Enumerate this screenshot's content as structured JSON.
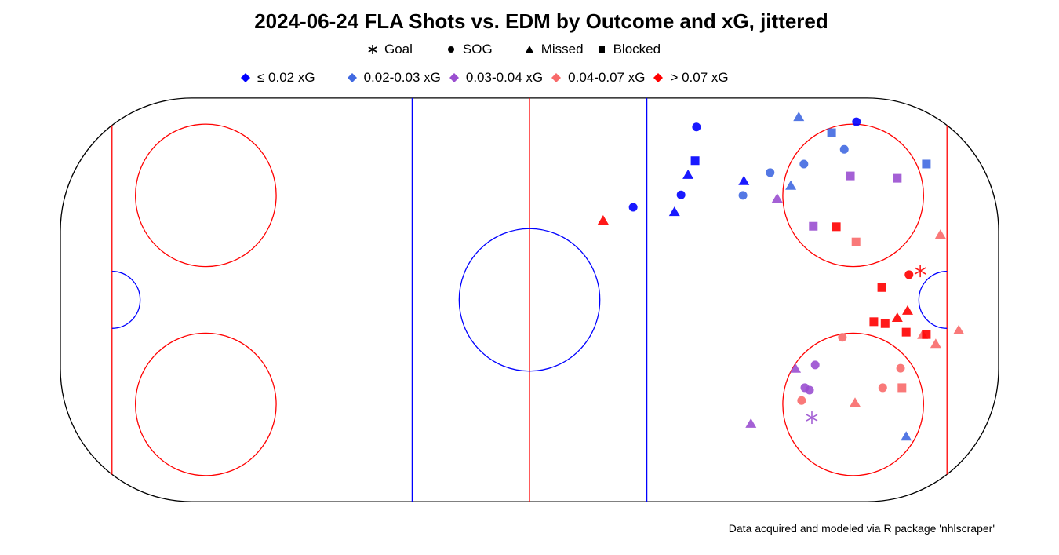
{
  "chart_data": {
    "type": "scatter",
    "title": "2024-06-24 FLA Shots vs. EDM by Outcome and xG, jittered",
    "caption": "Data acquired and modeled via R package 'nhlscraper'",
    "xlim": [
      -100,
      100
    ],
    "ylim": [
      -42.5,
      42.5
    ],
    "grid": false,
    "background": "hockey rink",
    "shape_legend": [
      {
        "label": "Goal",
        "shape": "asterisk"
      },
      {
        "label": "SOG",
        "shape": "circle"
      },
      {
        "label": "Missed",
        "shape": "triangle"
      },
      {
        "label": "Blocked",
        "shape": "square"
      }
    ],
    "color_legend": [
      {
        "label": "≤ 0.02 xG",
        "color": "#0000FF"
      },
      {
        "label": "0.02-0.03 xG",
        "color": "#4169E1"
      },
      {
        "label": "0.03-0.04 xG",
        "color": "#9A4FD0"
      },
      {
        "label": "0.04-0.07 xG",
        "color": "#F86A6A"
      },
      {
        "label": "> 0.07 xG",
        "color": "#FF0000"
      }
    ],
    "points": [
      {
        "x": 35.6,
        "y": 36.4,
        "outcome": "SOG",
        "xg_bin": 0
      },
      {
        "x": 35.3,
        "y": 29.3,
        "outcome": "Blocked",
        "xg_bin": 0
      },
      {
        "x": 33.8,
        "y": 26.3,
        "outcome": "Missed",
        "xg_bin": 0
      },
      {
        "x": 32.3,
        "y": 22.1,
        "outcome": "SOG",
        "xg_bin": 0
      },
      {
        "x": 30.9,
        "y": 18.5,
        "outcome": "Missed",
        "xg_bin": 0
      },
      {
        "x": 22.1,
        "y": 19.5,
        "outcome": "SOG",
        "xg_bin": 0
      },
      {
        "x": 45.7,
        "y": 25.0,
        "outcome": "Missed",
        "xg_bin": 0
      },
      {
        "x": 69.7,
        "y": 37.5,
        "outcome": "SOG",
        "xg_bin": 0
      },
      {
        "x": 57.4,
        "y": 38.5,
        "outcome": "Missed",
        "xg_bin": 1
      },
      {
        "x": 64.4,
        "y": 35.2,
        "outcome": "Blocked",
        "xg_bin": 1
      },
      {
        "x": 67.1,
        "y": 31.7,
        "outcome": "SOG",
        "xg_bin": 1
      },
      {
        "x": 58.5,
        "y": 28.6,
        "outcome": "SOG",
        "xg_bin": 1
      },
      {
        "x": 51.3,
        "y": 26.8,
        "outcome": "SOG",
        "xg_bin": 1
      },
      {
        "x": 45.5,
        "y": 22.0,
        "outcome": "SOG",
        "xg_bin": 1
      },
      {
        "x": 55.7,
        "y": 24.0,
        "outcome": "Missed",
        "xg_bin": 1
      },
      {
        "x": 84.6,
        "y": 28.6,
        "outcome": "Blocked",
        "xg_bin": 1
      },
      {
        "x": 80.3,
        "y": -28.8,
        "outcome": "Missed",
        "xg_bin": 1
      },
      {
        "x": 52.8,
        "y": 21.3,
        "outcome": "Missed",
        "xg_bin": 2
      },
      {
        "x": 68.4,
        "y": 26.1,
        "outcome": "Blocked",
        "xg_bin": 2
      },
      {
        "x": 78.4,
        "y": 25.6,
        "outcome": "Blocked",
        "xg_bin": 2
      },
      {
        "x": 60.5,
        "y": 15.5,
        "outcome": "Blocked",
        "xg_bin": 2
      },
      {
        "x": 56.7,
        "y": -14.5,
        "outcome": "Missed",
        "xg_bin": 2
      },
      {
        "x": 60.9,
        "y": -13.7,
        "outcome": "SOG",
        "xg_bin": 2
      },
      {
        "x": 58.7,
        "y": -18.5,
        "outcome": "SOG",
        "xg_bin": 2
      },
      {
        "x": 59.7,
        "y": -19.0,
        "outcome": "SOG",
        "xg_bin": 2
      },
      {
        "x": 60.2,
        "y": -24.8,
        "outcome": "Goal",
        "xg_bin": 2
      },
      {
        "x": 47.2,
        "y": -26.1,
        "outcome": "Missed",
        "xg_bin": 2
      },
      {
        "x": 69.6,
        "y": 12.2,
        "outcome": "Blocked",
        "xg_bin": 3
      },
      {
        "x": 87.6,
        "y": 13.7,
        "outcome": "Missed",
        "xg_bin": 3
      },
      {
        "x": 66.7,
        "y": -7.9,
        "outcome": "SOG",
        "xg_bin": 3
      },
      {
        "x": 79.1,
        "y": -14.4,
        "outcome": "SOG",
        "xg_bin": 3
      },
      {
        "x": 75.3,
        "y": -18.5,
        "outcome": "SOG",
        "xg_bin": 3
      },
      {
        "x": 79.4,
        "y": -18.5,
        "outcome": "Blocked",
        "xg_bin": 3
      },
      {
        "x": 58.0,
        "y": -21.2,
        "outcome": "SOG",
        "xg_bin": 3
      },
      {
        "x": 69.4,
        "y": -21.7,
        "outcome": "Missed",
        "xg_bin": 3
      },
      {
        "x": 83.8,
        "y": -7.4,
        "outcome": "Missed",
        "xg_bin": 3
      },
      {
        "x": 86.6,
        "y": -9.3,
        "outcome": "Missed",
        "xg_bin": 3
      },
      {
        "x": 91.5,
        "y": -6.4,
        "outcome": "Missed",
        "xg_bin": 3
      },
      {
        "x": 15.7,
        "y": 16.7,
        "outcome": "Missed",
        "xg_bin": 4
      },
      {
        "x": 65.4,
        "y": 15.4,
        "outcome": "Blocked",
        "xg_bin": 4
      },
      {
        "x": 80.9,
        "y": 5.3,
        "outcome": "SOG",
        "xg_bin": 4
      },
      {
        "x": 83.3,
        "y": 6.1,
        "outcome": "Goal",
        "xg_bin": 4
      },
      {
        "x": 75.1,
        "y": 2.6,
        "outcome": "Blocked",
        "xg_bin": 4
      },
      {
        "x": 73.4,
        "y": -4.6,
        "outcome": "Blocked",
        "xg_bin": 4
      },
      {
        "x": 75.8,
        "y": -5.0,
        "outcome": "Blocked",
        "xg_bin": 4
      },
      {
        "x": 78.4,
        "y": -3.8,
        "outcome": "Missed",
        "xg_bin": 4
      },
      {
        "x": 80.6,
        "y": -2.3,
        "outcome": "Missed",
        "xg_bin": 4
      },
      {
        "x": 80.3,
        "y": -6.8,
        "outcome": "Blocked",
        "xg_bin": 4
      },
      {
        "x": 84.6,
        "y": -7.3,
        "outcome": "Blocked",
        "xg_bin": 4
      }
    ]
  }
}
